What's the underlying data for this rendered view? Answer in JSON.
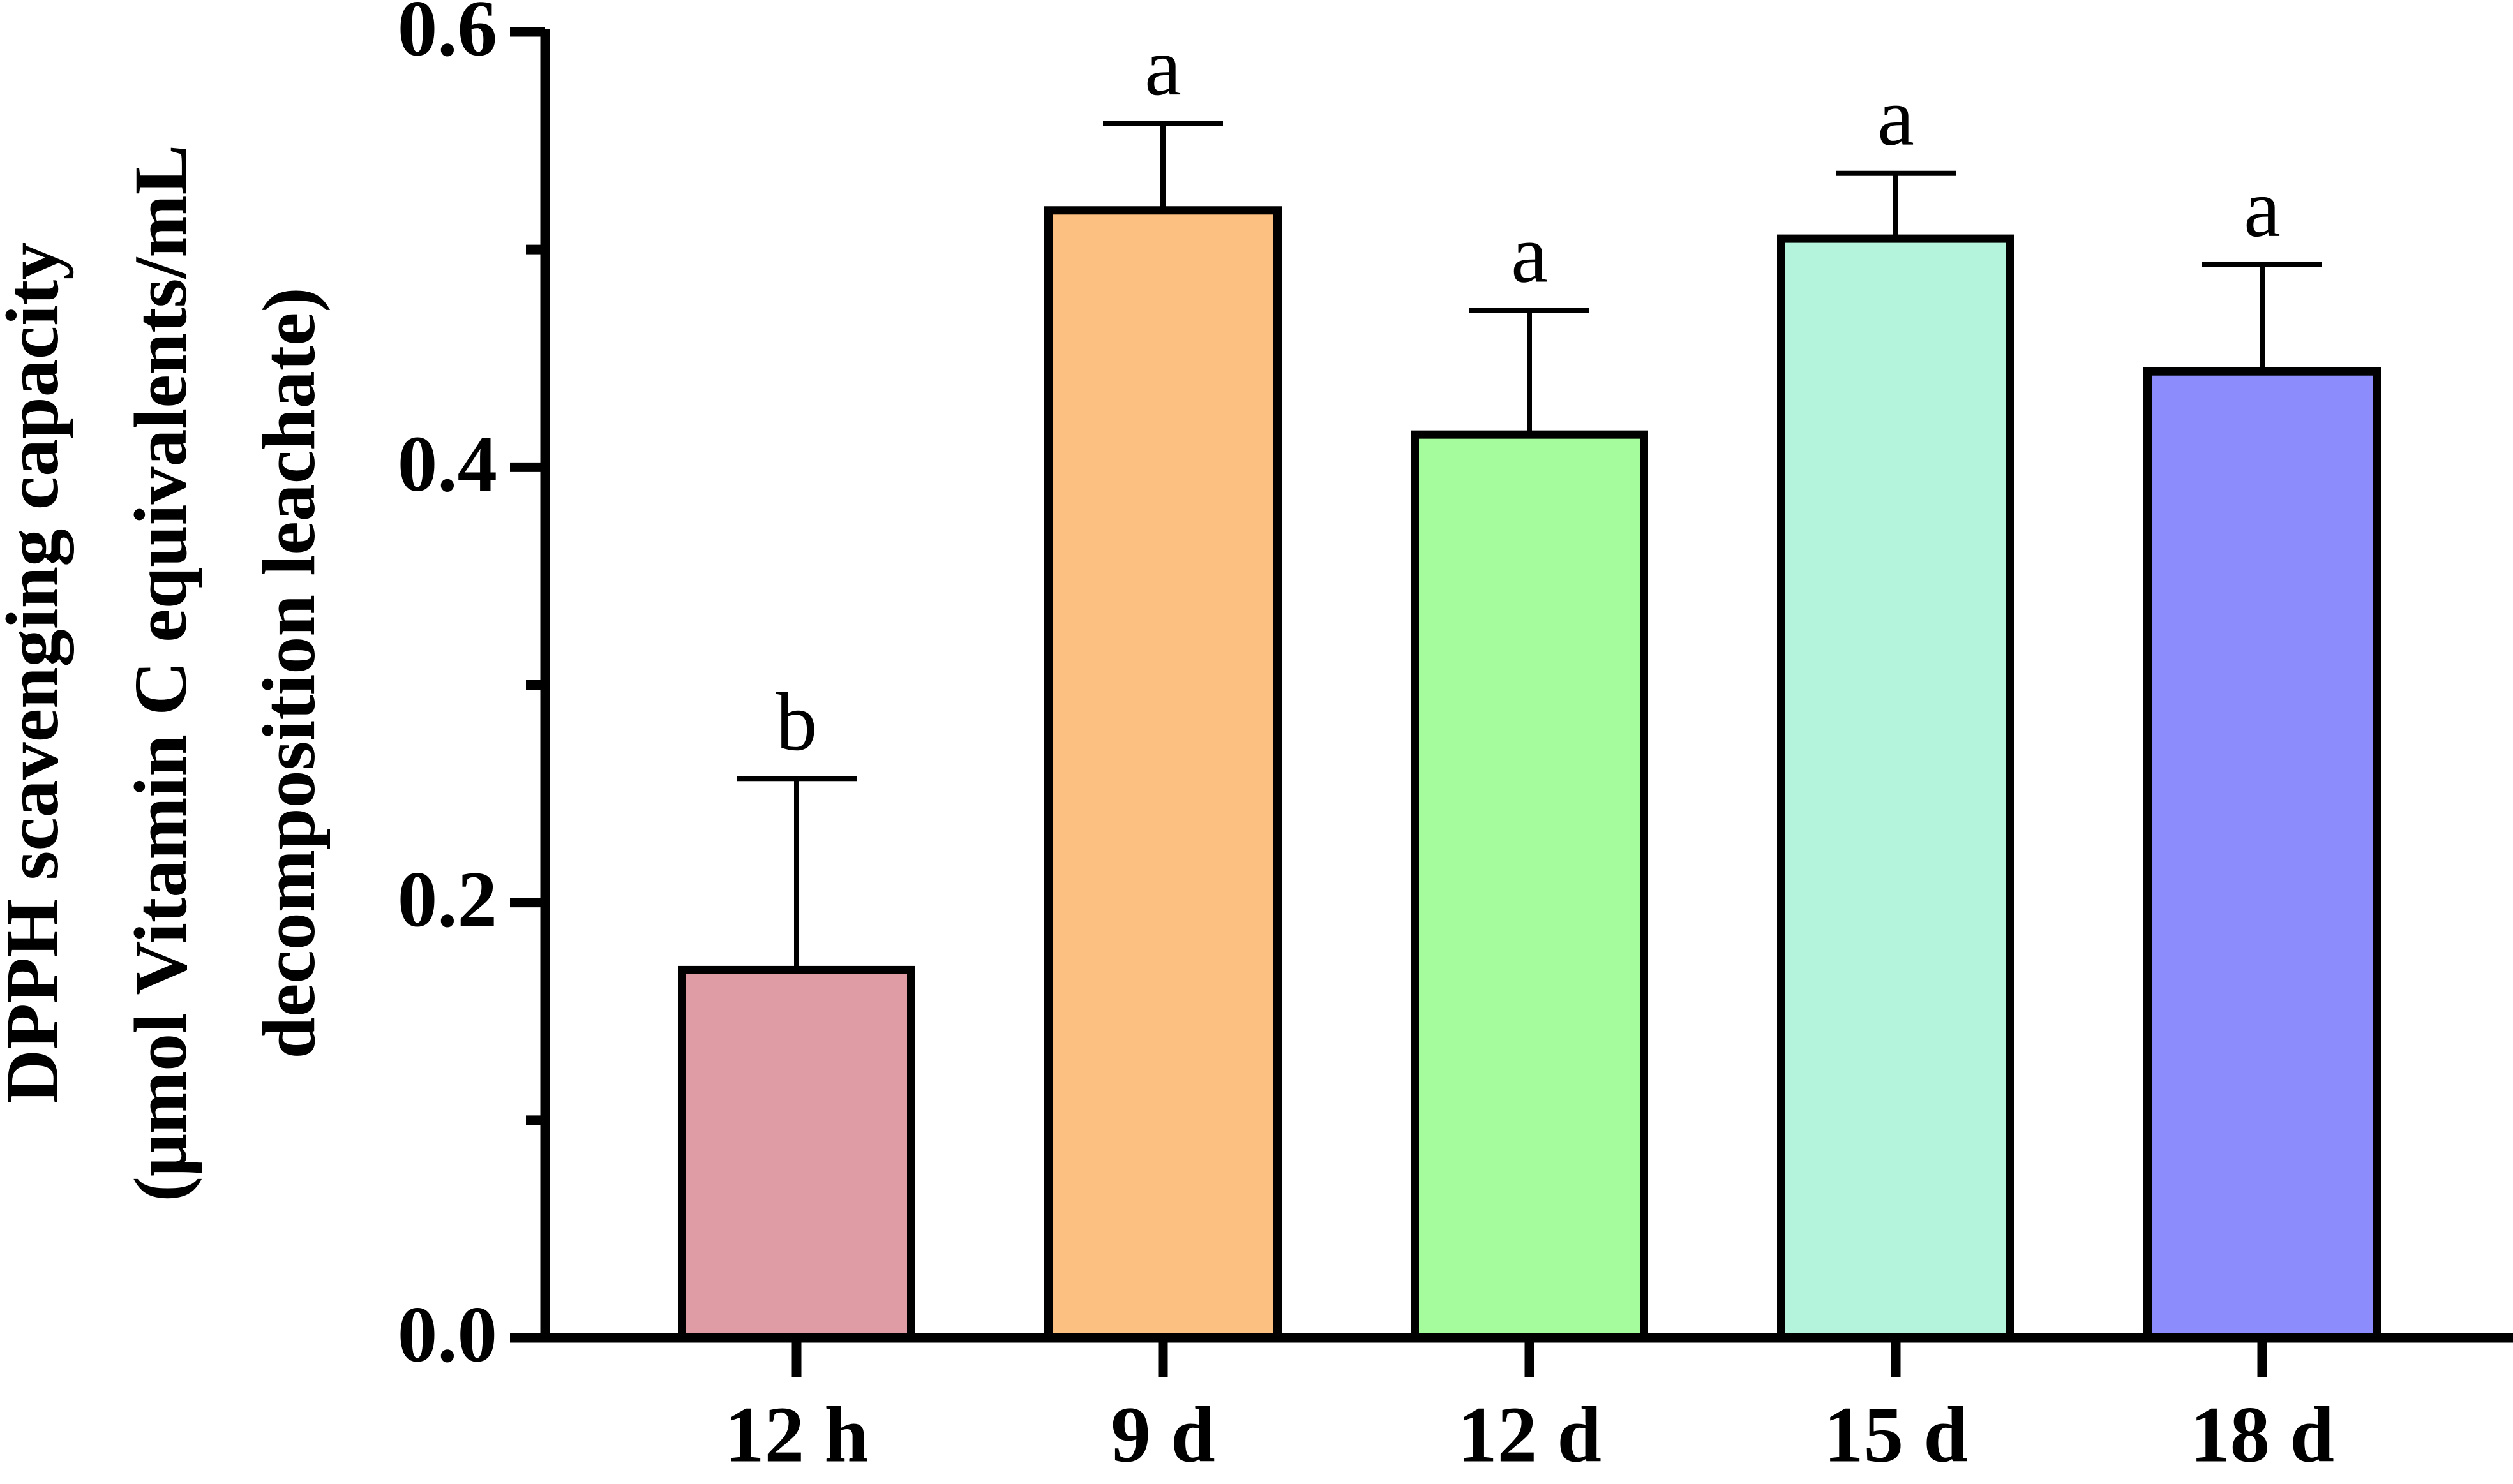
{
  "chart_data": {
    "type": "bar",
    "ylabel": [
      "DPPH scavenging capacity",
      "(μmol Vitamin C equivalents/mL",
      "decomposition leachate)"
    ],
    "categories": [
      "12 h",
      "9 d",
      "12 d",
      "15 d",
      "18 d"
    ],
    "values": [
      0.169,
      0.518,
      0.415,
      0.505,
      0.444
    ],
    "errors": [
      0.088,
      0.04,
      0.057,
      0.03,
      0.049
    ],
    "significance": [
      "b",
      "a",
      "a",
      "a",
      "a"
    ],
    "colors": [
      "#e09ca4",
      "#fcc080",
      "#a4fc9c",
      "#b4f4dc",
      "#8c8cfc"
    ],
    "ylim": [
      0,
      0.6
    ],
    "yticks": [
      {
        "value": 0,
        "label": "0.0"
      },
      0.2,
      0.4,
      0.6
    ],
    "minor_yticks": [
      0.1,
      0.3,
      0.5
    ]
  }
}
